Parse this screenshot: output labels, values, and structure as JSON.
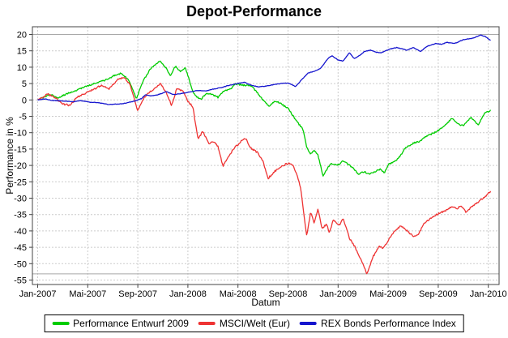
{
  "chart_data": {
    "type": "line",
    "title": "Depot-Performance",
    "xlabel": "Datum",
    "ylabel": "Performance in %",
    "x_unit": "months since Jan-2007",
    "x_ticks": [
      {
        "m": 0,
        "label": "Jan-2007"
      },
      {
        "m": 4,
        "label": "Mai-2007"
      },
      {
        "m": 8,
        "label": "Sep-2007"
      },
      {
        "m": 12,
        "label": "Jan-2008"
      },
      {
        "m": 16,
        "label": "Mai-2008"
      },
      {
        "m": 20,
        "label": "Sep-2008"
      },
      {
        "m": 24,
        "label": "Jan-2009"
      },
      {
        "m": 28,
        "label": "Mai-2009"
      },
      {
        "m": 32,
        "label": "Sep-2009"
      },
      {
        "m": 36,
        "label": "Jan-2010"
      }
    ],
    "y_ticks": [
      20,
      15,
      10,
      5,
      0,
      -5,
      -10,
      -15,
      -20,
      -25,
      -30,
      -35,
      -40,
      -45,
      -50,
      -55
    ],
    "ylim": [
      -56.5,
      22.5
    ],
    "grid": "dashed",
    "solid_reference_lines": [
      20,
      -53.1
    ],
    "legend_position": "bottom",
    "series": [
      {
        "name": "Performance Entwurf 2009",
        "color": "#00CC00",
        "points": [
          [
            0,
            0
          ],
          [
            0.5,
            0.9
          ],
          [
            1,
            1.7
          ],
          [
            1.6,
            0.5
          ],
          [
            2,
            1.3
          ],
          [
            2.6,
            2.3
          ],
          [
            3.1,
            2.9
          ],
          [
            3.8,
            4.1
          ],
          [
            4.8,
            5.3
          ],
          [
            5.5,
            6.2
          ],
          [
            6.1,
            7.4
          ],
          [
            6.7,
            8.2
          ],
          [
            7.3,
            6.0
          ],
          [
            7.9,
            0.2
          ],
          [
            8.3,
            4.9
          ],
          [
            9,
            9.5
          ],
          [
            9.8,
            12.0
          ],
          [
            10.3,
            9.5
          ],
          [
            10.6,
            7.4
          ],
          [
            11,
            10.3
          ],
          [
            11.4,
            8.7
          ],
          [
            11.8,
            9.9
          ],
          [
            12.4,
            2.5
          ],
          [
            12.7,
            0.8
          ],
          [
            13.1,
            0.4
          ],
          [
            13.5,
            2.1
          ],
          [
            14,
            1.6
          ],
          [
            14.4,
            0.8
          ],
          [
            14.8,
            2.5
          ],
          [
            15.4,
            3.3
          ],
          [
            15.8,
            4.9
          ],
          [
            16.4,
            4.5
          ],
          [
            17,
            4.5
          ],
          [
            17.4,
            2.9
          ],
          [
            17.9,
            0.4
          ],
          [
            18.5,
            -2.1
          ],
          [
            18.9,
            -0.4
          ],
          [
            19.3,
            -0.8
          ],
          [
            20,
            -2.6
          ],
          [
            20.6,
            -6.0
          ],
          [
            21.2,
            -9.1
          ],
          [
            21.5,
            -14.5
          ],
          [
            21.8,
            -16.5
          ],
          [
            22.1,
            -15.3
          ],
          [
            22.4,
            -17.0
          ],
          [
            22.8,
            -23.2
          ],
          [
            23.4,
            -19.4
          ],
          [
            24,
            -19.8
          ],
          [
            24.4,
            -18.6
          ],
          [
            25.2,
            -20.7
          ],
          [
            25.6,
            -22.7
          ],
          [
            26.1,
            -21.9
          ],
          [
            26.5,
            -22.7
          ],
          [
            27.4,
            -21.1
          ],
          [
            27.7,
            -22.3
          ],
          [
            28,
            -19.8
          ],
          [
            28.7,
            -18.2
          ],
          [
            29,
            -17.0
          ],
          [
            29.3,
            -14.9
          ],
          [
            30,
            -13.2
          ],
          [
            30.6,
            -12.5
          ],
          [
            31,
            -11.2
          ],
          [
            31.6,
            -10.2
          ],
          [
            31.9,
            -9.6
          ],
          [
            32.5,
            -8.0
          ],
          [
            33.1,
            -5.5
          ],
          [
            33.6,
            -7.3
          ],
          [
            34,
            -7.9
          ],
          [
            34.6,
            -5.4
          ],
          [
            35.2,
            -7.5
          ],
          [
            35.7,
            -4.2
          ],
          [
            36.2,
            -3.0
          ]
        ]
      },
      {
        "name": "MSCI/Welt (Eur)",
        "color": "#EE3333",
        "points": [
          [
            0,
            0
          ],
          [
            0.8,
            1.8
          ],
          [
            1.4,
            0.6
          ],
          [
            2,
            -1.2
          ],
          [
            2.6,
            -1.7
          ],
          [
            3.1,
            0.8
          ],
          [
            4.1,
            2.5
          ],
          [
            5.1,
            4.5
          ],
          [
            5.7,
            3.3
          ],
          [
            6.4,
            6.2
          ],
          [
            6.9,
            7.0
          ],
          [
            7.4,
            4.5
          ],
          [
            8.0,
            -3.4
          ],
          [
            8.5,
            0.8
          ],
          [
            9,
            2.5
          ],
          [
            9.8,
            5.0
          ],
          [
            10.3,
            2.1
          ],
          [
            10.7,
            -1.7
          ],
          [
            11.1,
            3.3
          ],
          [
            11.6,
            2.9
          ],
          [
            12,
            -0.4
          ],
          [
            12.4,
            -2.1
          ],
          [
            12.8,
            -12.0
          ],
          [
            13.2,
            -9.6
          ],
          [
            13.7,
            -13.4
          ],
          [
            14,
            -12.6
          ],
          [
            14.4,
            -14.2
          ],
          [
            14.8,
            -20.2
          ],
          [
            15.2,
            -17.6
          ],
          [
            15.6,
            -15.2
          ],
          [
            16.3,
            -12.4
          ],
          [
            16.6,
            -11.6
          ],
          [
            17,
            -14.6
          ],
          [
            17.6,
            -16.2
          ],
          [
            18,
            -18.8
          ],
          [
            18.4,
            -24.0
          ],
          [
            19,
            -21.6
          ],
          [
            19.8,
            -19.6
          ],
          [
            20.3,
            -19.4
          ],
          [
            20.7,
            -22.6
          ],
          [
            21,
            -26.6
          ],
          [
            21.3,
            -36.0
          ],
          [
            21.5,
            -41.6
          ],
          [
            21.8,
            -34.2
          ],
          [
            22.1,
            -37.6
          ],
          [
            22.4,
            -33.2
          ],
          [
            22.7,
            -39.2
          ],
          [
            23.1,
            -38.0
          ],
          [
            23.3,
            -40.8
          ],
          [
            23.6,
            -36.6
          ],
          [
            24.1,
            -38.2
          ],
          [
            24.4,
            -36.2
          ],
          [
            24.9,
            -42.2
          ],
          [
            25.3,
            -44.6
          ],
          [
            26,
            -50.2
          ],
          [
            26.3,
            -53.2
          ],
          [
            26.8,
            -47.8
          ],
          [
            27.3,
            -44.6
          ],
          [
            27.6,
            -45.4
          ],
          [
            28,
            -42.9
          ],
          [
            28.5,
            -40.2
          ],
          [
            29,
            -38.5
          ],
          [
            29.5,
            -39.9
          ],
          [
            30,
            -41.6
          ],
          [
            30.4,
            -41.4
          ],
          [
            30.8,
            -38.0
          ],
          [
            31.4,
            -36.0
          ],
          [
            32.1,
            -34.6
          ],
          [
            32.6,
            -33.8
          ],
          [
            33.1,
            -32.6
          ],
          [
            33.5,
            -33.3
          ],
          [
            33.8,
            -32.2
          ],
          [
            34.2,
            -34.2
          ],
          [
            34.7,
            -32.6
          ],
          [
            35.3,
            -30.9
          ],
          [
            35.7,
            -29.7
          ],
          [
            36.2,
            -27.9
          ]
        ]
      },
      {
        "name": "REX Bonds Performance Index",
        "color": "#1515CE",
        "points": [
          [
            0,
            0
          ],
          [
            0.6,
            0.3
          ],
          [
            1.2,
            -0.2
          ],
          [
            2,
            -0.3
          ],
          [
            2.8,
            -0.6
          ],
          [
            3.4,
            -0.2
          ],
          [
            4.2,
            -0.7
          ],
          [
            4.8,
            -0.8
          ],
          [
            5.7,
            -1.4
          ],
          [
            6.7,
            -1.2
          ],
          [
            7.7,
            -0.4
          ],
          [
            8.3,
            0.4
          ],
          [
            8.6,
            1.6
          ],
          [
            9,
            1.2
          ],
          [
            9.6,
            1.6
          ],
          [
            10.3,
            2.5
          ],
          [
            10.9,
            1.6
          ],
          [
            11.7,
            2.1
          ],
          [
            12.2,
            2.5
          ],
          [
            12.8,
            2.9
          ],
          [
            13.4,
            2.7
          ],
          [
            14,
            3.3
          ],
          [
            14.7,
            3.8
          ],
          [
            15.2,
            4.4
          ],
          [
            16,
            5.0
          ],
          [
            16.5,
            5.4
          ],
          [
            17,
            4.6
          ],
          [
            17.6,
            4.0
          ],
          [
            18.2,
            4.2
          ],
          [
            18.8,
            4.6
          ],
          [
            19.4,
            5.0
          ],
          [
            20,
            5.2
          ],
          [
            20.6,
            4.1
          ],
          [
            21.1,
            6.2
          ],
          [
            21.6,
            8.2
          ],
          [
            22.1,
            8.8
          ],
          [
            22.6,
            9.6
          ],
          [
            23.2,
            12.7
          ],
          [
            23.5,
            13.5
          ],
          [
            24,
            12.2
          ],
          [
            24.4,
            11.9
          ],
          [
            24.9,
            14.4
          ],
          [
            25.3,
            12.6
          ],
          [
            25.8,
            13.8
          ],
          [
            26.1,
            14.8
          ],
          [
            26.6,
            15.2
          ],
          [
            27,
            14.6
          ],
          [
            27.4,
            14.4
          ],
          [
            28.2,
            15.6
          ],
          [
            28.7,
            16.0
          ],
          [
            29.5,
            15.2
          ],
          [
            30,
            16.0
          ],
          [
            30.6,
            14.8
          ],
          [
            31.1,
            16.4
          ],
          [
            31.8,
            17.2
          ],
          [
            32.3,
            17.0
          ],
          [
            32.7,
            17.6
          ],
          [
            33.3,
            17.2
          ],
          [
            34,
            18.4
          ],
          [
            34.7,
            18.8
          ],
          [
            35.4,
            19.8
          ],
          [
            35.8,
            19.3
          ],
          [
            36.2,
            18.1
          ]
        ]
      }
    ]
  }
}
